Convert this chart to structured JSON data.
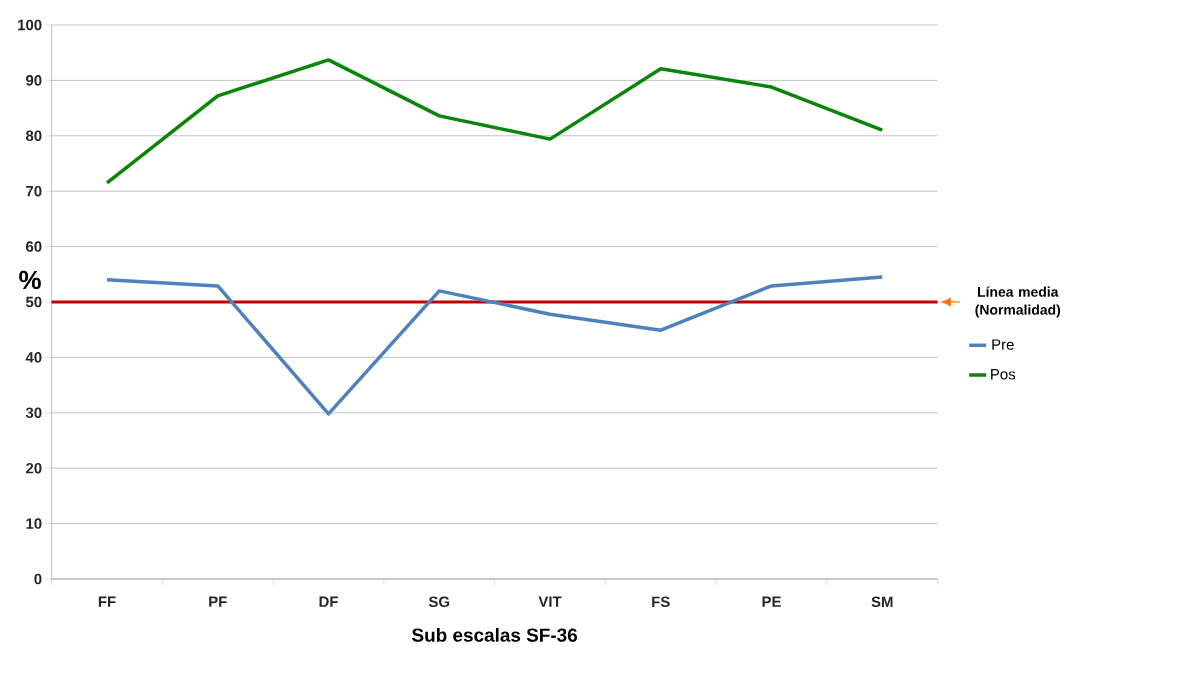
{
  "chart_data": {
    "type": "line",
    "xlabel": "Sub escalas SF-36",
    "ylabel": "%",
    "categories": [
      "FF",
      "PF",
      "DF",
      "SG",
      "VIT",
      "FS",
      "PE",
      "SM"
    ],
    "series": [
      {
        "name": "Pre",
        "color": "#4f81bd",
        "values": [
          54.0,
          52.9,
          29.8,
          52.0,
          47.8,
          44.9,
          52.9,
          54.5
        ]
      },
      {
        "name": "Pos",
        "color": "#0a850a",
        "values": [
          71.5,
          87.2,
          93.7,
          83.6,
          79.4,
          92.1,
          88.8,
          81.0
        ]
      }
    ],
    "ylim": [
      0,
      100
    ],
    "yticks": [
      0,
      10,
      20,
      30,
      40,
      50,
      60,
      70,
      80,
      90,
      100
    ],
    "grid": "y",
    "legend": "right",
    "marker": "none",
    "line_style": "solid",
    "ref_lines": [
      {
        "axis": "y",
        "value": 50,
        "label": "Línea media (Normalidad)",
        "color": "#c00000"
      }
    ]
  }
}
